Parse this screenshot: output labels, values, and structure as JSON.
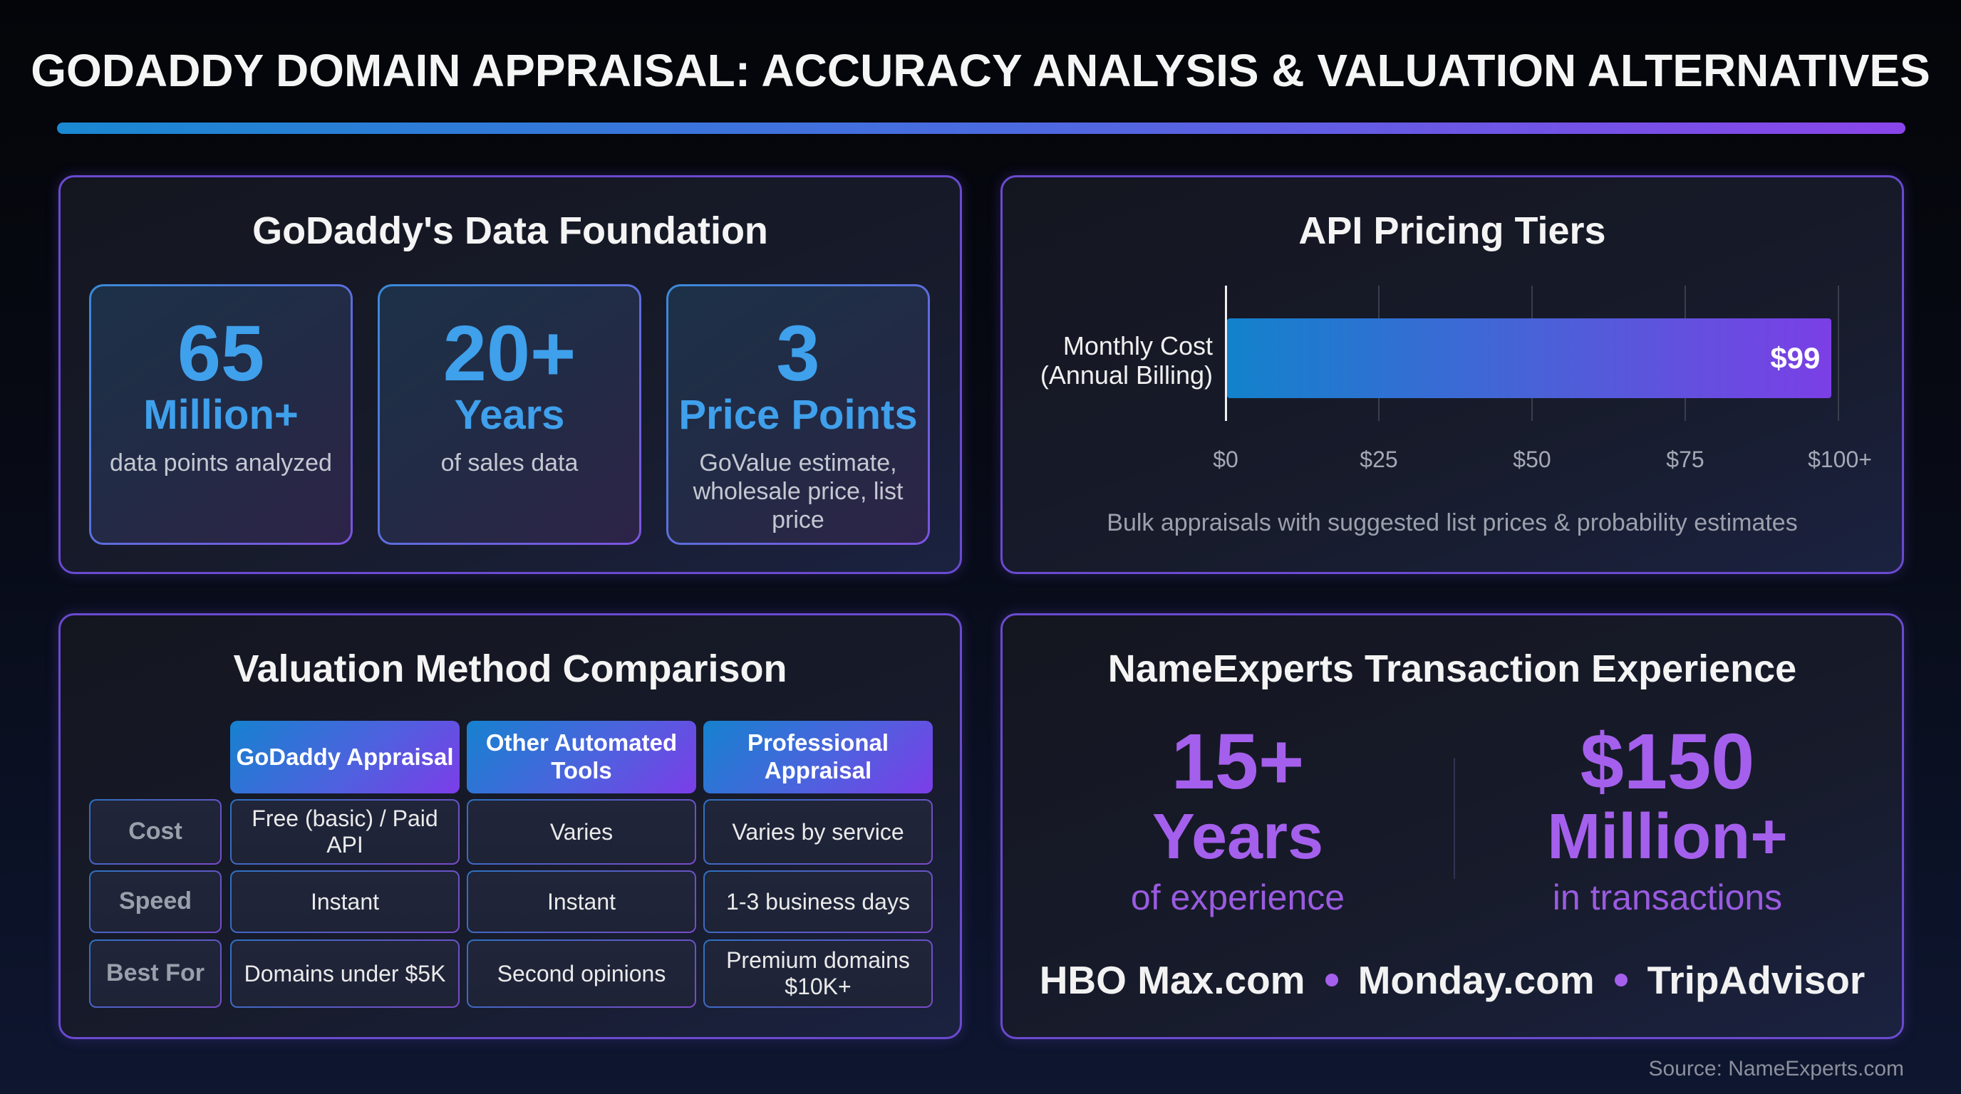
{
  "title": "GODADDY DOMAIN APPRAISAL: ACCURACY ANALYSIS & VALUATION ALTERNATIVES",
  "colors": {
    "accent_blue": "#3fa0ec",
    "accent_purple": "#a460ec",
    "border_purple": "#6a4ad0"
  },
  "data_foundation": {
    "title": "GoDaddy's Data Foundation",
    "stats": [
      {
        "value": "65",
        "unit": "Million+",
        "desc": "data points analyzed"
      },
      {
        "value": "20+",
        "unit": "Years",
        "desc": "of sales data"
      },
      {
        "value": "3",
        "unit": "Price Points",
        "desc": "GoValue estimate, wholesale price, list price"
      }
    ]
  },
  "api_pricing": {
    "title": "API Pricing Tiers",
    "y_label": "Monthly Cost (Annual Billing)",
    "bar_label": "$99",
    "ticks": [
      "$0",
      "$25",
      "$50",
      "$75",
      "$100+"
    ],
    "note": "Bulk appraisals with suggested list prices & probability estimates"
  },
  "chart_data": {
    "type": "bar",
    "orientation": "horizontal",
    "title": "API Pricing Tiers",
    "categories": [
      "Monthly Cost (Annual Billing)"
    ],
    "values": [
      99
    ],
    "value_labels": [
      "$99"
    ],
    "xlabel": "",
    "ylabel": "",
    "xlim": [
      0,
      100
    ],
    "x_ticks": [
      "$0",
      "$25",
      "$50",
      "$75",
      "$100+"
    ],
    "grid": true,
    "legend": null,
    "annotation": "Bulk appraisals with suggested list prices & probability estimates"
  },
  "comparison": {
    "title": "Valuation Method Comparison",
    "columns": [
      "GoDaddy Appraisal",
      "Other Automated Tools",
      "Professional Appraisal"
    ],
    "rows": [
      {
        "label": "Cost",
        "cells": [
          "Free (basic) / Paid API",
          "Varies",
          "Varies by service"
        ]
      },
      {
        "label": "Speed",
        "cells": [
          "Instant",
          "Instant",
          "1-3 business days"
        ]
      },
      {
        "label": "Best For",
        "cells": [
          "Domains under $5K",
          "Second opinions",
          "Premium domains $10K+"
        ]
      }
    ]
  },
  "nameexperts": {
    "title": "NameExperts Transaction Experience",
    "stats": [
      {
        "value": "15+",
        "unit": "Years",
        "desc": "of experience"
      },
      {
        "value": "$150",
        "unit": "Million+",
        "desc": "in transactions"
      }
    ],
    "clients": [
      "HBO Max.com",
      "Monday.com",
      "TripAdvisor"
    ]
  },
  "source": "Source: NameExperts.com"
}
